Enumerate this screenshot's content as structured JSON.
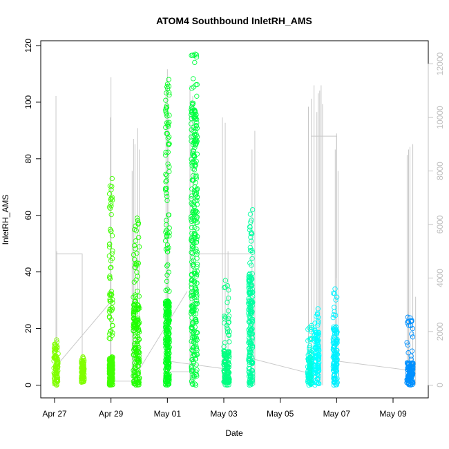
{
  "chart_data": {
    "type": "scatter",
    "title": "ATOM4 Southbound InletRH_AMS",
    "xlabel": "Date",
    "ylabel": "InletRH_AMS",
    "x_start": "2017-04-27",
    "xlim": [
      -0.1,
      12.6
    ],
    "ylim": [
      0,
      120
    ],
    "y2lim": [
      0,
      12000
    ],
    "x_ticks": [
      {
        "day": 0,
        "label": "Apr 27"
      },
      {
        "day": 2,
        "label": "Apr 29"
      },
      {
        "day": 4,
        "label": "May 01"
      },
      {
        "day": 6,
        "label": "May 03"
      },
      {
        "day": 8,
        "label": "May 05"
      },
      {
        "day": 10,
        "label": "May 07"
      },
      {
        "day": 12,
        "label": "May 09"
      }
    ],
    "y_ticks": [
      0,
      20,
      40,
      60,
      80,
      100,
      120
    ],
    "y2_ticks": [
      0,
      2000,
      4000,
      6000,
      8000,
      10000,
      12000
    ],
    "grid": false,
    "clusters": [
      {
        "day": 0.05,
        "width": 0.15,
        "ymin": 0,
        "ymax": 16,
        "dense_max": 14,
        "color": "#80ff00"
      },
      {
        "day": 1.0,
        "width": 0.1,
        "ymin": 1,
        "ymax": 10,
        "dense_max": 9,
        "color": "#80ff00"
      },
      {
        "day": 2.0,
        "width": 0.12,
        "ymin": 0,
        "ymax": 73,
        "dense_max": 10,
        "color": "#40ff00"
      },
      {
        "day": 2.9,
        "width": 0.22,
        "ymin": 0,
        "ymax": 59,
        "dense_max": 30,
        "color": "#20ff00"
      },
      {
        "day": 4.0,
        "width": 0.14,
        "ymin": 0,
        "ymax": 108,
        "dense_max": 30,
        "color": "#00ff20"
      },
      {
        "day": 4.95,
        "width": 0.22,
        "ymin": 0,
        "ymax": 117,
        "dense_max": 100,
        "color": "#00ff40"
      },
      {
        "day": 6.1,
        "width": 0.2,
        "ymin": 0,
        "ymax": 37,
        "dense_max": 12,
        "color": "#00ff80"
      },
      {
        "day": 6.95,
        "width": 0.15,
        "ymin": 0,
        "ymax": 62,
        "dense_max": 40,
        "color": "#00ffa0"
      },
      {
        "day": 9.05,
        "width": 0.15,
        "ymin": 0,
        "ymax": 21,
        "dense_max": 10,
        "color": "#00ffe0"
      },
      {
        "day": 9.3,
        "width": 0.15,
        "ymin": 0,
        "ymax": 27,
        "dense_max": 20,
        "color": "#00ffff"
      },
      {
        "day": 9.95,
        "width": 0.15,
        "ymin": 0,
        "ymax": 34,
        "dense_max": 20,
        "color": "#00f0ff"
      },
      {
        "day": 12.6,
        "width": 0.22,
        "ymin": 0,
        "ymax": 24,
        "dense_max": 8,
        "color": "#0090ff"
      }
    ],
    "secondary_series": {
      "name": "",
      "color": "#c8c8c8",
      "spikes": [
        {
          "day": 0.05,
          "top": 10800
        },
        {
          "day": 0.08,
          "top": 5000
        },
        {
          "day": 2.0,
          "top": 11500
        },
        {
          "day": 1.98,
          "top": 10000
        },
        {
          "day": 2.75,
          "top": 8000
        },
        {
          "day": 2.8,
          "top": 9200
        },
        {
          "day": 2.85,
          "top": 9000
        },
        {
          "day": 2.95,
          "top": 9600
        },
        {
          "day": 3.0,
          "top": 8800
        },
        {
          "day": 3.95,
          "top": 11100
        },
        {
          "day": 4.0,
          "top": 11800
        },
        {
          "day": 4.05,
          "top": 10000
        },
        {
          "day": 4.8,
          "top": 11200
        },
        {
          "day": 4.9,
          "top": 10800
        },
        {
          "day": 5.95,
          "top": 10000
        },
        {
          "day": 6.05,
          "top": 9800
        },
        {
          "day": 6.15,
          "top": 5000
        },
        {
          "day": 7.1,
          "top": 9500
        },
        {
          "day": 7.0,
          "top": 8800
        },
        {
          "day": 9.0,
          "top": 10400
        },
        {
          "day": 9.1,
          "top": 10700
        },
        {
          "day": 9.2,
          "top": 11200
        },
        {
          "day": 9.3,
          "top": 10200
        },
        {
          "day": 9.35,
          "top": 10900
        },
        {
          "day": 9.4,
          "top": 11000
        },
        {
          "day": 9.45,
          "top": 11200
        },
        {
          "day": 9.5,
          "top": 10500
        },
        {
          "day": 9.95,
          "top": 8800
        },
        {
          "day": 10.0,
          "top": 9400
        },
        {
          "day": 10.05,
          "top": 8000
        },
        {
          "day": 12.5,
          "top": 8600
        },
        {
          "day": 12.55,
          "top": 8800
        },
        {
          "day": 12.6,
          "top": 8900
        },
        {
          "day": 12.7,
          "top": 9000
        },
        {
          "day": 12.8,
          "top": 3300
        }
      ],
      "connectors": [
        [
          [
            0.05,
            4900
          ],
          [
            0.98,
            4900
          ],
          [
            0.98,
            700
          ]
        ],
        [
          [
            0.05,
            700
          ],
          [
            1.98,
            3100
          ]
        ],
        [
          [
            1.98,
            150
          ],
          [
            2.75,
            150
          ]
        ],
        [
          [
            2.75,
            150
          ],
          [
            4.7,
            3500
          ]
        ],
        [
          [
            3.95,
            500
          ],
          [
            5.0,
            500
          ]
        ],
        [
          [
            4.0,
            900
          ],
          [
            6.1,
            600
          ]
        ],
        [
          [
            5.0,
            4900
          ],
          [
            6.95,
            4900
          ]
        ],
        [
          [
            6.95,
            1000
          ],
          [
            9.0,
            450
          ]
        ],
        [
          [
            9.1,
            9300
          ],
          [
            10.0,
            9300
          ],
          [
            10.0,
            4000
          ]
        ],
        [
          [
            10.0,
            900
          ],
          [
            12.6,
            550
          ]
        ]
      ]
    }
  }
}
